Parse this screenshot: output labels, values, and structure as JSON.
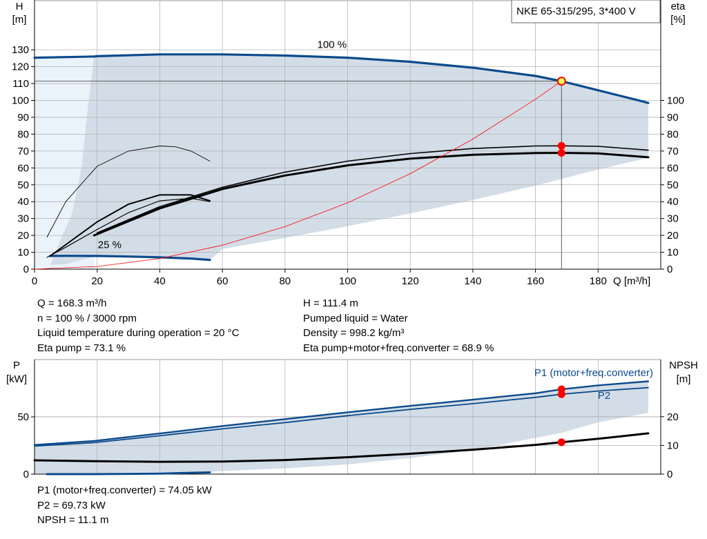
{
  "title": "NKE 65-315/295, 3*400 V",
  "chart_data": [
    {
      "type": "line",
      "name": "head-efficiency",
      "title": "NKE 65-315/295, 3*400 V",
      "xlabel": "Q [m³/h]",
      "ylabel": [
        "H",
        "[m]"
      ],
      "y2label": [
        "eta",
        "[%]"
      ],
      "xlim": [
        0,
        200
      ],
      "ylim": [
        0,
        140
      ],
      "y2lim": [
        0,
        140
      ],
      "x_ticks": [
        0,
        20,
        40,
        60,
        80,
        100,
        120,
        140,
        160,
        180
      ],
      "y_ticks": [
        0,
        10,
        20,
        30,
        40,
        50,
        60,
        70,
        80,
        90,
        100,
        110,
        120,
        130
      ],
      "y2_ticks": [
        0,
        10,
        20,
        30,
        40,
        50,
        60,
        70,
        80,
        90,
        100
      ],
      "grid": true,
      "range_area": [
        [
          19,
          126
        ],
        [
          40,
          127.3
        ],
        [
          60,
          127.3
        ],
        [
          80,
          126.6
        ],
        [
          100,
          125.3
        ],
        [
          120,
          122.9
        ],
        [
          140,
          119.4
        ],
        [
          160,
          114.5
        ],
        [
          168.3,
          111.4
        ],
        [
          180,
          106
        ],
        [
          194,
          99.5
        ],
        [
          196,
          98.5
        ],
        [
          196,
          66
        ],
        [
          180,
          59
        ],
        [
          160,
          49.5
        ],
        [
          140,
          41
        ],
        [
          120,
          33
        ],
        [
          100,
          25.5
        ],
        [
          80,
          18.5
        ],
        [
          60,
          12
        ],
        [
          56,
          5.5
        ],
        [
          40,
          7.5
        ],
        [
          20,
          8
        ],
        [
          10,
          3
        ],
        [
          5,
          2.5
        ],
        [
          8,
          16
        ],
        [
          12,
          33
        ],
        [
          15,
          60
        ],
        [
          17,
          95
        ],
        [
          19,
          126
        ]
      ],
      "series": [
        {
          "name": "100 %",
          "role": "head",
          "color": "#0b4a8b",
          "x": [
            0,
            19,
            20,
            40,
            60,
            80,
            100,
            120,
            140,
            160,
            168.3,
            180,
            194,
            196
          ],
          "y": [
            125.3,
            126,
            126.2,
            127.3,
            127.3,
            126.6,
            125.3,
            122.9,
            119.4,
            114.5,
            111.4,
            106,
            99.5,
            98.5
          ]
        },
        {
          "name": "25 %",
          "role": "head",
          "color": "#0b4a8b",
          "x": [
            5,
            10,
            20,
            30,
            40,
            50,
            56
          ],
          "y": [
            7.8,
            7.9,
            7.8,
            7.5,
            7,
            6.3,
            5.5
          ]
        },
        {
          "name": "",
          "role": "eta-thin-right",
          "color": "#000000",
          "x": [
            20,
            40,
            60,
            80,
            100,
            120,
            140,
            160,
            168.3,
            180,
            196
          ],
          "y": [
            21.5,
            37,
            48.5,
            57.5,
            64,
            68.5,
            71.5,
            73,
            73.1,
            72.8,
            70.5
          ]
        },
        {
          "name": "",
          "role": "eta-thick-right",
          "color": "#000000",
          "x": [
            19,
            40,
            60,
            80,
            100,
            120,
            140,
            160,
            168.3,
            180,
            196
          ],
          "y": [
            20,
            36,
            47.5,
            55.5,
            61.5,
            65.5,
            67.8,
            68.8,
            68.9,
            68.6,
            66.3
          ]
        },
        {
          "name": "",
          "role": "eta-thick-low",
          "color": "#000000",
          "x": [
            5,
            10,
            20,
            30,
            40,
            50,
            56
          ],
          "y": [
            7.8,
            14.5,
            28,
            38.5,
            44,
            44,
            40.5
          ]
        },
        {
          "name": "",
          "role": "eta-thin-low",
          "color": "#000000",
          "x": [
            4,
            10,
            20,
            30,
            40,
            50,
            56
          ],
          "y": [
            7,
            13,
            23.5,
            33.5,
            40.5,
            42,
            40
          ]
        },
        {
          "name": "",
          "role": "eta-thin-arc",
          "color": "#000000",
          "x": [
            4,
            10,
            20,
            30,
            40,
            45,
            50,
            56
          ],
          "y": [
            19,
            40,
            61,
            70,
            73,
            72.5,
            70,
            64
          ]
        },
        {
          "name": "",
          "role": "system-curve",
          "color": "#ff0000",
          "x": [
            0,
            20,
            40,
            60,
            80,
            100,
            120,
            140,
            160,
            168.3
          ],
          "y": [
            0,
            1.6,
            6.3,
            14.2,
            25.2,
            39.3,
            56.6,
            77.1,
            100.7,
            111.4
          ]
        }
      ],
      "operating_point": {
        "q": 168.3,
        "h": 111.4,
        "eta_pump": 73.1,
        "eta_total": 68.9
      },
      "annotations": [
        {
          "text": "100 %",
          "x": 95,
          "y": 131
        },
        {
          "text": "25 %",
          "x": 24,
          "y": 12.5
        }
      ]
    },
    {
      "type": "line",
      "name": "power-npsh",
      "ylabel": [
        "P",
        "[kW]"
      ],
      "y2label": [
        "NPSH",
        "[m]"
      ],
      "xlim": [
        0,
        200
      ],
      "ylim": [
        0,
        90
      ],
      "y2lim": [
        0,
        32.8
      ],
      "y_ticks": [
        0,
        50
      ],
      "y2_ticks": [
        0,
        10,
        20
      ],
      "grid": true,
      "range_area": [
        [
          0,
          25.5
        ],
        [
          19,
          29
        ],
        [
          60,
          42
        ],
        [
          100,
          54
        ],
        [
          140,
          65
        ],
        [
          168.3,
          73.5
        ],
        [
          196,
          81
        ],
        [
          196,
          53.5
        ],
        [
          180,
          45.2
        ],
        [
          168.3,
          36
        ],
        [
          140,
          21
        ],
        [
          120,
          14
        ],
        [
          100,
          8.5
        ],
        [
          80,
          5
        ],
        [
          60,
          2.8
        ],
        [
          56,
          2
        ],
        [
          30,
          1.5
        ],
        [
          10,
          0.5
        ],
        [
          0,
          0.5
        ]
      ],
      "series": [
        {
          "name": "P1 (motor+freq.converter)",
          "role": "power",
          "color": "#0b4a8b",
          "x": [
            0,
            19,
            40,
            60,
            80,
            100,
            120,
            140,
            160,
            168.3,
            180,
            196
          ],
          "y": [
            25.5,
            29,
            35.5,
            42,
            48,
            54,
            59.6,
            65,
            70.6,
            74.05,
            77.5,
            81
          ]
        },
        {
          "name": "P2",
          "role": "power",
          "color": "#0b4a8b",
          "x": [
            0,
            19,
            40,
            60,
            80,
            100,
            120,
            140,
            160,
            168.3,
            180,
            196
          ],
          "y": [
            24.5,
            27.5,
            33.5,
            39.5,
            45,
            51,
            56.5,
            61.5,
            67,
            69.73,
            72.5,
            75.5
          ]
        },
        {
          "name": "",
          "role": "npsh",
          "color": "#000000",
          "x": [
            0,
            19,
            40,
            60,
            80,
            100,
            120,
            140,
            160,
            168.3,
            180,
            196
          ],
          "y": [
            4.8,
            4.5,
            4.3,
            4.4,
            4.9,
            5.9,
            7.1,
            8.5,
            10.2,
            11.1,
            12.3,
            14.2
          ]
        },
        {
          "name": "",
          "role": "low-power",
          "color": "#0b4a8b",
          "x": [
            4,
            19,
            40,
            56
          ],
          "y": [
            0,
            0,
            0.5,
            1.5
          ]
        }
      ],
      "operating_point": {
        "q": 168.3,
        "p1": 74.05,
        "p2": 69.73,
        "npsh": 11.1
      },
      "legend": [
        "P1 (motor+freq.converter)",
        "P2"
      ]
    }
  ],
  "info_top_left": [
    "Q = 168.3 m³/h",
    "n = 100 % / 3000 rpm",
    "Liquid temperature during operation = 20 °C",
    "Eta pump = 73.1 %"
  ],
  "info_top_right": [
    "H = 111.4 m",
    "Pumped liquid = Water",
    "Density = 998.2 kg/m³",
    "Eta pump+motor+freq.converter = 68.9 %"
  ],
  "info_bottom": [
    "P1 (motor+freq.converter) = 74.05 kW",
    "P2 = 69.73 kW",
    "NPSH = 11.1 m"
  ],
  "colors": {
    "curve_blue": "#0b4a8b",
    "area_fill": "#d3dde8",
    "light_fill": "#eaf2fa",
    "system_red": "#ff0000",
    "marker_red": "#ff0000",
    "op_marker_fill": "#ffff55"
  }
}
